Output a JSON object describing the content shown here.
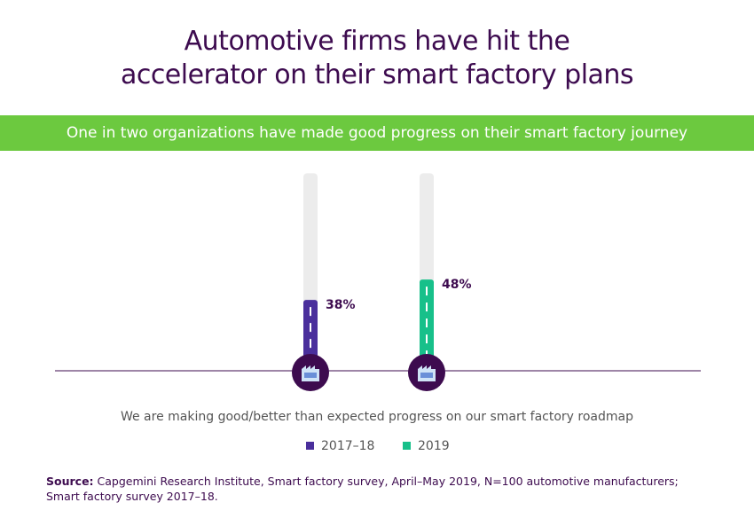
{
  "chart_data": {
    "type": "bar",
    "title": "Automotive firms have hit the accelerator on their smart factory plans",
    "subtitle": "One in two organizations have made good progress on their smart factory journey",
    "categories": [
      "2017–18",
      "2019"
    ],
    "values": [
      38,
      48
    ],
    "value_labels": [
      "38%",
      "48%"
    ],
    "colors": [
      "#4a2f9c",
      "#17c08a"
    ],
    "ylim": [
      0,
      100
    ],
    "xlabel": "We are making good/better than expected progress on our smart factory roadmap",
    "source": {
      "label": "Source:",
      "text": "Capgemini Research Institute, Smart factory survey, April–May 2019, N=100 automotive manufacturers; Smart factory survey 2017–18."
    }
  }
}
